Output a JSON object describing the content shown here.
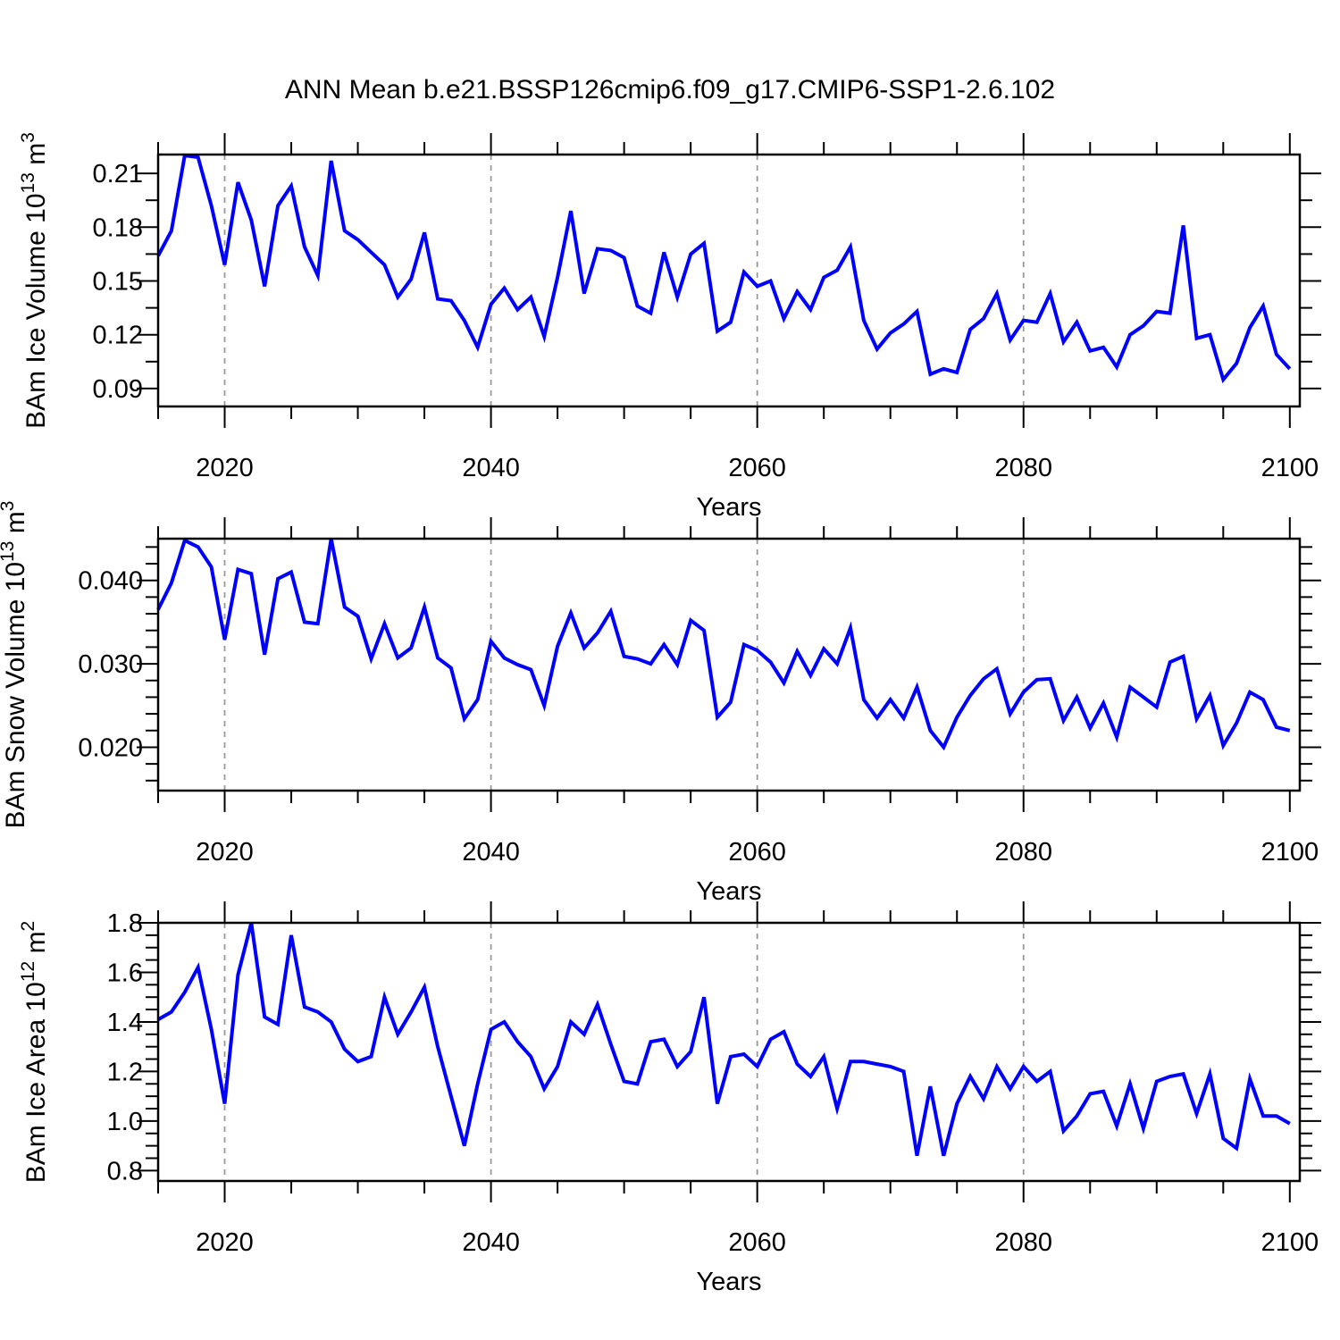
{
  "title": "ANN Mean b.e21.BSSP126cmip6.f09_g17.CMIP6-SSP1-2.6.102",
  "chart_data": {
    "type": "line",
    "title": "ANN Mean b.e21.BSSP126cmip6.f09_g17.CMIP6-SSP1-2.6.102",
    "xlabel": "Years",
    "xlim": [
      2015,
      2100.75
    ],
    "xticks": [
      2020,
      2040,
      2060,
      2080,
      2100
    ],
    "xminor_step": 5,
    "grid_years": [
      2020,
      2040,
      2060,
      2080
    ],
    "grid_color": "#999999",
    "line_color": "#0000ff",
    "years": [
      2015,
      2016,
      2017,
      2018,
      2019,
      2020,
      2021,
      2022,
      2023,
      2024,
      2025,
      2026,
      2027,
      2028,
      2029,
      2030,
      2031,
      2032,
      2033,
      2034,
      2035,
      2036,
      2037,
      2038,
      2039,
      2040,
      2041,
      2042,
      2043,
      2044,
      2045,
      2046,
      2047,
      2048,
      2049,
      2050,
      2051,
      2052,
      2053,
      2054,
      2055,
      2056,
      2057,
      2058,
      2059,
      2060,
      2061,
      2062,
      2063,
      2064,
      2065,
      2066,
      2067,
      2068,
      2069,
      2070,
      2071,
      2072,
      2073,
      2074,
      2075,
      2076,
      2077,
      2078,
      2079,
      2080,
      2081,
      2082,
      2083,
      2084,
      2085,
      2086,
      2087,
      2088,
      2089,
      2090,
      2091,
      2092,
      2093,
      2094,
      2095,
      2096,
      2097,
      2098,
      2099,
      2100
    ],
    "panels": [
      {
        "name": "ice-volume",
        "ylabel_text": "BAm Ice Volume 10^13 m^3",
        "ylabel": [
          {
            "t": "BAm Ice Volume 10"
          },
          {
            "t": "13",
            "sup": true
          },
          {
            "t": " m"
          },
          {
            "t": "3",
            "sup": true
          }
        ],
        "ylim": [
          0.08,
          0.2205
        ],
        "yticks": [
          0.09,
          0.12,
          0.15,
          0.18,
          0.21
        ],
        "ytick_labels": [
          "0.09",
          "0.12",
          "0.15",
          "0.18",
          "0.21"
        ],
        "yminor_step": 0.015,
        "values": [
          0.164,
          0.178,
          0.22,
          0.219,
          0.192,
          0.159,
          0.205,
          0.184,
          0.147,
          0.192,
          0.203,
          0.169,
          0.153,
          0.217,
          0.178,
          0.173,
          0.166,
          0.159,
          0.141,
          0.151,
          0.177,
          0.14,
          0.139,
          0.128,
          0.113,
          0.137,
          0.146,
          0.134,
          0.141,
          0.119,
          0.152,
          0.189,
          0.143,
          0.168,
          0.167,
          0.163,
          0.136,
          0.132,
          0.166,
          0.141,
          0.165,
          0.171,
          0.122,
          0.127,
          0.155,
          0.147,
          0.15,
          0.129,
          0.144,
          0.134,
          0.152,
          0.156,
          0.169,
          0.128,
          0.112,
          0.121,
          0.126,
          0.133,
          0.098,
          0.101,
          0.099,
          0.123,
          0.129,
          0.143,
          0.117,
          0.128,
          0.127,
          0.143,
          0.116,
          0.127,
          0.111,
          0.113,
          0.102,
          0.12,
          0.125,
          0.133,
          0.132,
          0.181,
          0.118,
          0.12,
          0.095,
          0.104,
          0.124,
          0.136,
          0.109,
          0.101
        ]
      },
      {
        "name": "snow-volume",
        "ylabel_text": "BAm Snow Volume 10^13 m^3",
        "ylabel": [
          {
            "t": "BAm Snow Volume 10"
          },
          {
            "t": "13",
            "sup": true
          },
          {
            "t": " m"
          },
          {
            "t": "3",
            "sup": true
          }
        ],
        "ylim": [
          0.0148,
          0.045
        ],
        "yticks": [
          0.02,
          0.03,
          0.04
        ],
        "ytick_labels": [
          "0.020",
          "0.030",
          "0.040"
        ],
        "yminor_step": 0.002,
        "values": [
          0.0365,
          0.0397,
          0.0448,
          0.044,
          0.0416,
          0.0329,
          0.0413,
          0.0408,
          0.0311,
          0.0402,
          0.041,
          0.035,
          0.0348,
          0.045,
          0.0368,
          0.0357,
          0.0306,
          0.0348,
          0.0307,
          0.0319,
          0.0368,
          0.0307,
          0.0295,
          0.0234,
          0.0257,
          0.0327,
          0.0307,
          0.0299,
          0.0293,
          0.025,
          0.0321,
          0.0361,
          0.0319,
          0.0337,
          0.0363,
          0.0309,
          0.0306,
          0.03,
          0.0323,
          0.0299,
          0.0352,
          0.034,
          0.0236,
          0.0254,
          0.0323,
          0.0316,
          0.0302,
          0.0277,
          0.0315,
          0.0286,
          0.0318,
          0.03,
          0.0343,
          0.0257,
          0.0235,
          0.0257,
          0.0235,
          0.0272,
          0.022,
          0.02,
          0.0236,
          0.0262,
          0.0282,
          0.0294,
          0.024,
          0.0266,
          0.0281,
          0.0282,
          0.0232,
          0.026,
          0.0223,
          0.0253,
          0.0212,
          0.0272,
          0.026,
          0.0248,
          0.0302,
          0.0309,
          0.0234,
          0.0262,
          0.0202,
          0.0229,
          0.0266,
          0.0257,
          0.0224,
          0.022
        ]
      },
      {
        "name": "ice-area",
        "ylabel_text": "BAm Ice Area 10^12 m^2",
        "ylabel": [
          {
            "t": "BAm Ice Area 10"
          },
          {
            "t": "12",
            "sup": true
          },
          {
            "t": " m"
          },
          {
            "t": "2",
            "sup": true
          }
        ],
        "ylim": [
          0.758,
          1.8
        ],
        "yticks": [
          0.8,
          1.0,
          1.2,
          1.4,
          1.6,
          1.8
        ],
        "ytick_labels": [
          "0.8",
          "1.0",
          "1.2",
          "1.4",
          "1.6",
          "1.8"
        ],
        "yminor_step": 0.05,
        "values": [
          1.41,
          1.44,
          1.52,
          1.62,
          1.37,
          1.07,
          1.59,
          1.8,
          1.42,
          1.39,
          1.75,
          1.46,
          1.44,
          1.4,
          1.29,
          1.24,
          1.26,
          1.5,
          1.35,
          1.44,
          1.54,
          1.3,
          1.1,
          0.9,
          1.15,
          1.37,
          1.4,
          1.32,
          1.26,
          1.13,
          1.22,
          1.4,
          1.35,
          1.47,
          1.31,
          1.16,
          1.15,
          1.32,
          1.33,
          1.22,
          1.28,
          1.5,
          1.07,
          1.26,
          1.27,
          1.22,
          1.33,
          1.36,
          1.23,
          1.18,
          1.26,
          1.05,
          1.24,
          1.24,
          1.23,
          1.22,
          1.2,
          0.86,
          1.14,
          0.86,
          1.07,
          1.18,
          1.09,
          1.22,
          1.13,
          1.22,
          1.16,
          1.2,
          0.96,
          1.02,
          1.11,
          1.12,
          0.98,
          1.15,
          0.97,
          1.16,
          1.18,
          1.19,
          1.03,
          1.19,
          0.93,
          0.89,
          1.17,
          1.02,
          1.02,
          0.99
        ]
      }
    ]
  }
}
